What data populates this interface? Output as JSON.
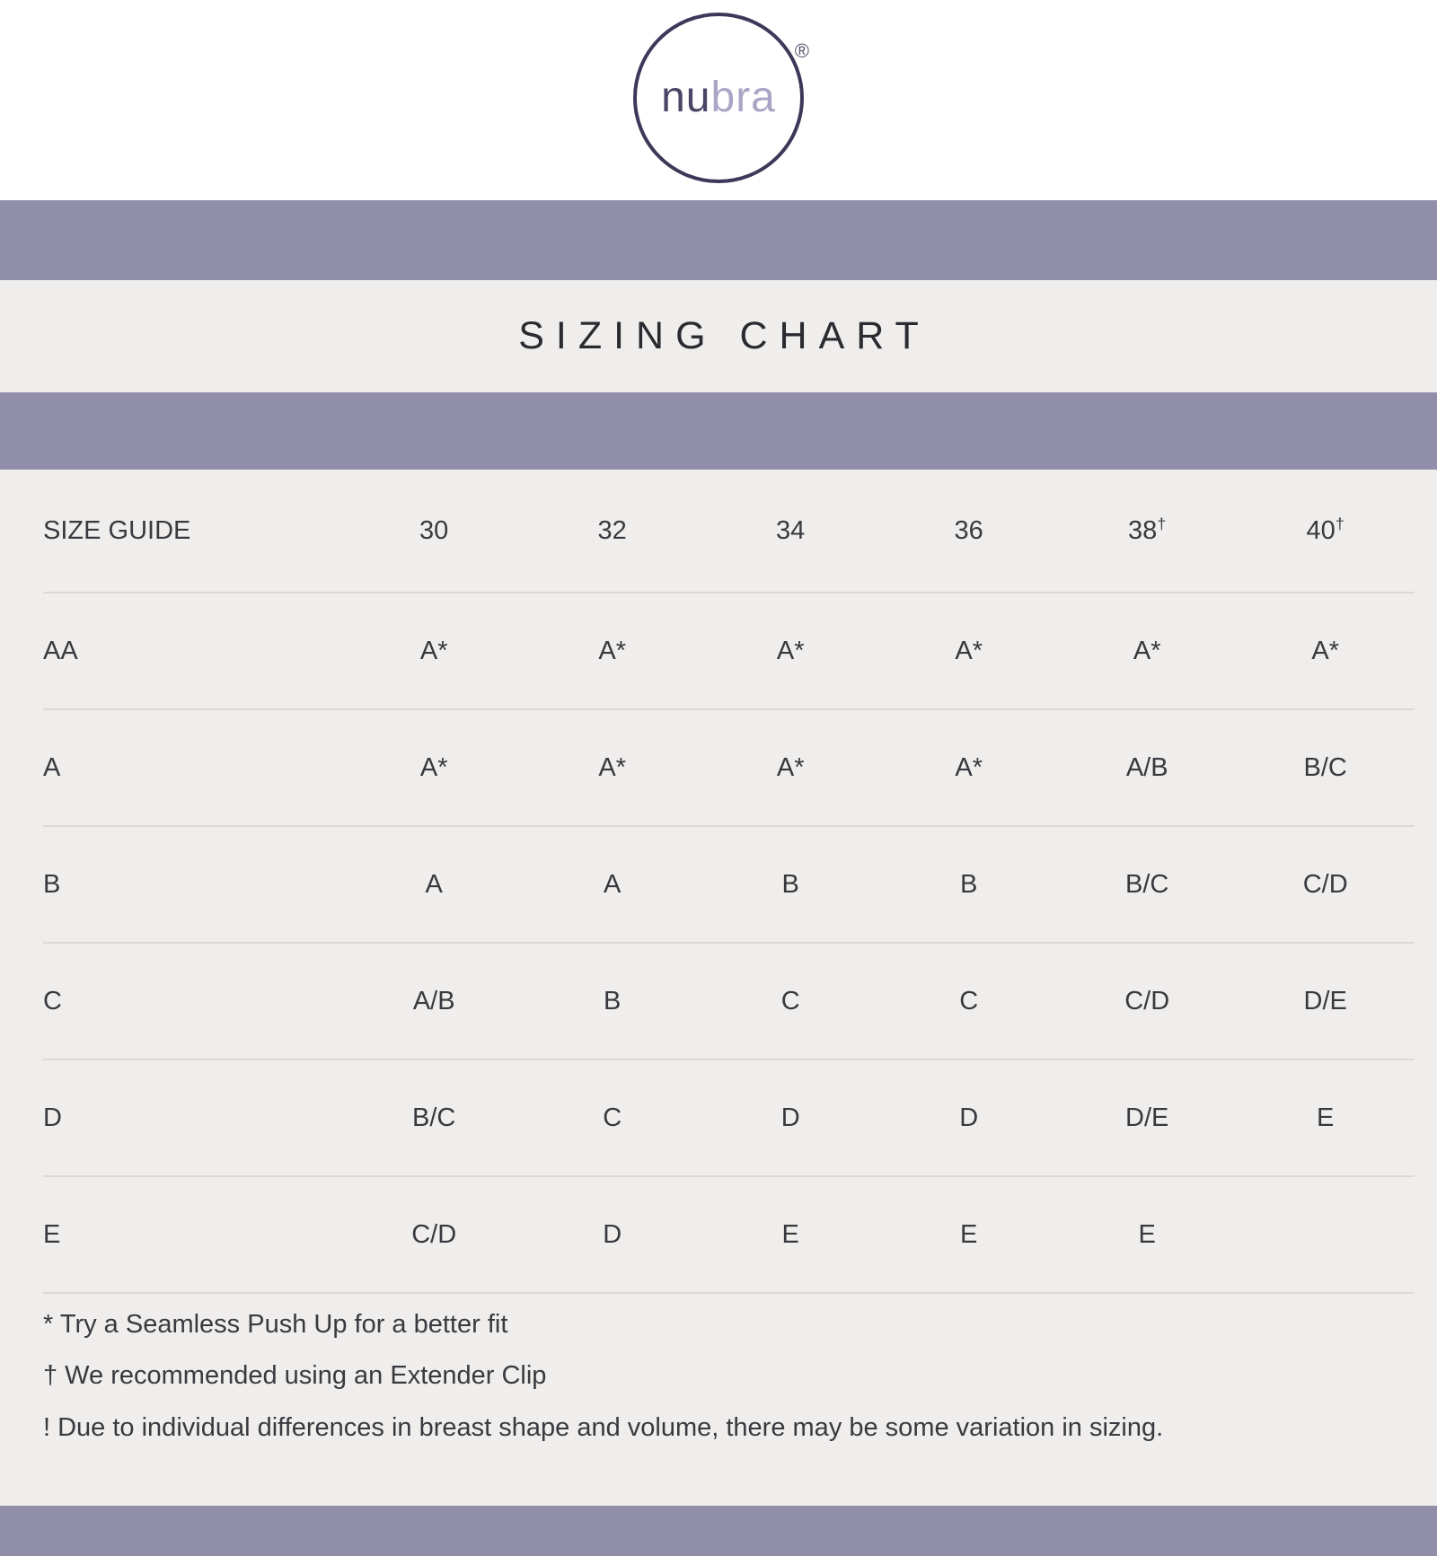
{
  "brand": {
    "logo_text_primary": "nu",
    "logo_text_secondary": "bra",
    "registered_symbol": "®"
  },
  "page": {
    "title": "SIZING CHART"
  },
  "colors": {
    "band_purple": "#918EA9",
    "background_gray": "#EFEEEC",
    "logo_dark_purple": "#4A4566",
    "logo_light_purple": "#A9A5C6",
    "text_dark": "#39383E",
    "divider_gray": "#DBDAD8"
  },
  "table": {
    "header": {
      "label": "SIZE GUIDE",
      "sizes": [
        {
          "text": "30",
          "sup": ""
        },
        {
          "text": "32",
          "sup": ""
        },
        {
          "text": "34",
          "sup": ""
        },
        {
          "text": "36",
          "sup": ""
        },
        {
          "text": "38",
          "sup": "†"
        },
        {
          "text": "40",
          "sup": "†"
        }
      ]
    },
    "rows": [
      {
        "label": "AA",
        "cells": [
          "A*",
          "A*",
          "A*",
          "A*",
          "A*",
          "A*"
        ]
      },
      {
        "label": "A",
        "cells": [
          "A*",
          "A*",
          "A*",
          "A*",
          "A/B",
          "B/C"
        ]
      },
      {
        "label": "B",
        "cells": [
          "A",
          "A",
          "B",
          "B",
          "B/C",
          "C/D"
        ]
      },
      {
        "label": "C",
        "cells": [
          "A/B",
          "B",
          "C",
          "C",
          "C/D",
          "D/E"
        ]
      },
      {
        "label": "D",
        "cells": [
          "B/C",
          "C",
          "D",
          "D",
          "D/E",
          "E"
        ]
      },
      {
        "label": "E",
        "cells": [
          "C/D",
          "D",
          "E",
          "E",
          "E",
          ""
        ]
      }
    ]
  },
  "footnotes": [
    "* Try a Seamless Push Up for a better fit",
    "† We recommended using an Extender Clip",
    "! Due to individual differences in breast shape and volume, there may be some variation in sizing."
  ]
}
